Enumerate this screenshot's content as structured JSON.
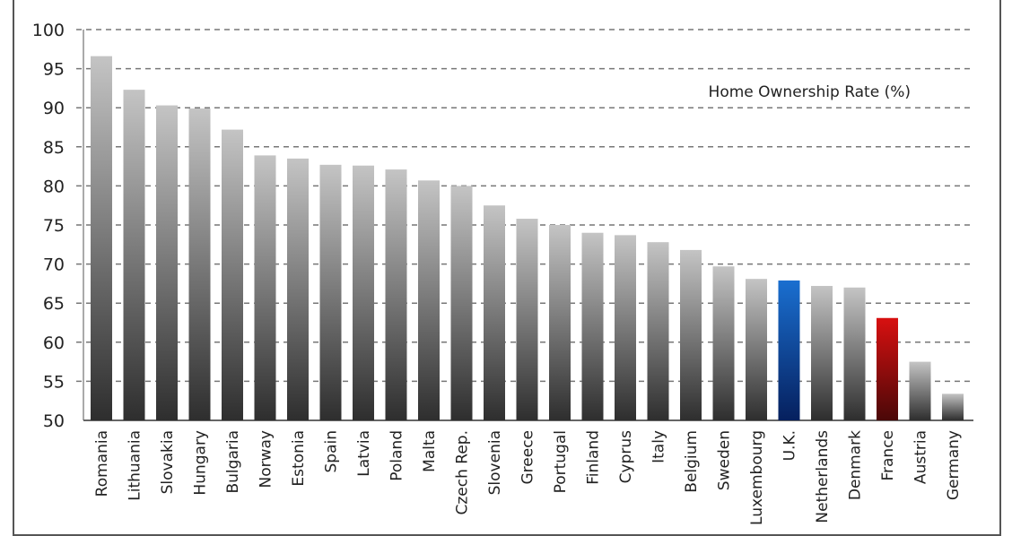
{
  "chart_data": {
    "type": "bar",
    "title": "Home Ownership Rate (%)",
    "xlabel": "",
    "ylabel": "",
    "ylim": [
      50,
      100
    ],
    "yticks": [
      50,
      55,
      60,
      65,
      70,
      75,
      80,
      85,
      90,
      95,
      100
    ],
    "grid": true,
    "categories": [
      "Romania",
      "Lithuania",
      "Slovakia",
      "Hungary",
      "Bulgaria",
      "Norway",
      "Estonia",
      "Spain",
      "Latvia",
      "Poland",
      "Malta",
      "Czech Rep.",
      "Slovenia",
      "Greece",
      "Portugal",
      "Finland",
      "Cyprus",
      "Italy",
      "Belgium",
      "Sweden",
      "Luxembourg",
      "U.K.",
      "Netherlands",
      "Denmark",
      "France",
      "Austria",
      "Germany"
    ],
    "values": [
      96.6,
      92.3,
      90.3,
      89.9,
      87.2,
      83.9,
      83.5,
      82.7,
      82.6,
      82.1,
      80.7,
      80.0,
      77.5,
      75.8,
      75.0,
      74.0,
      73.7,
      72.8,
      71.8,
      69.7,
      68.1,
      67.9,
      67.2,
      67.0,
      63.1,
      57.5,
      53.4
    ],
    "colors": {
      "default": [
        "#c4c4c4",
        "#2e2e2e"
      ],
      "U.K.": [
        "#1a6fd0",
        "#06205e"
      ],
      "France": [
        "#d81010",
        "#4a0808"
      ]
    }
  }
}
